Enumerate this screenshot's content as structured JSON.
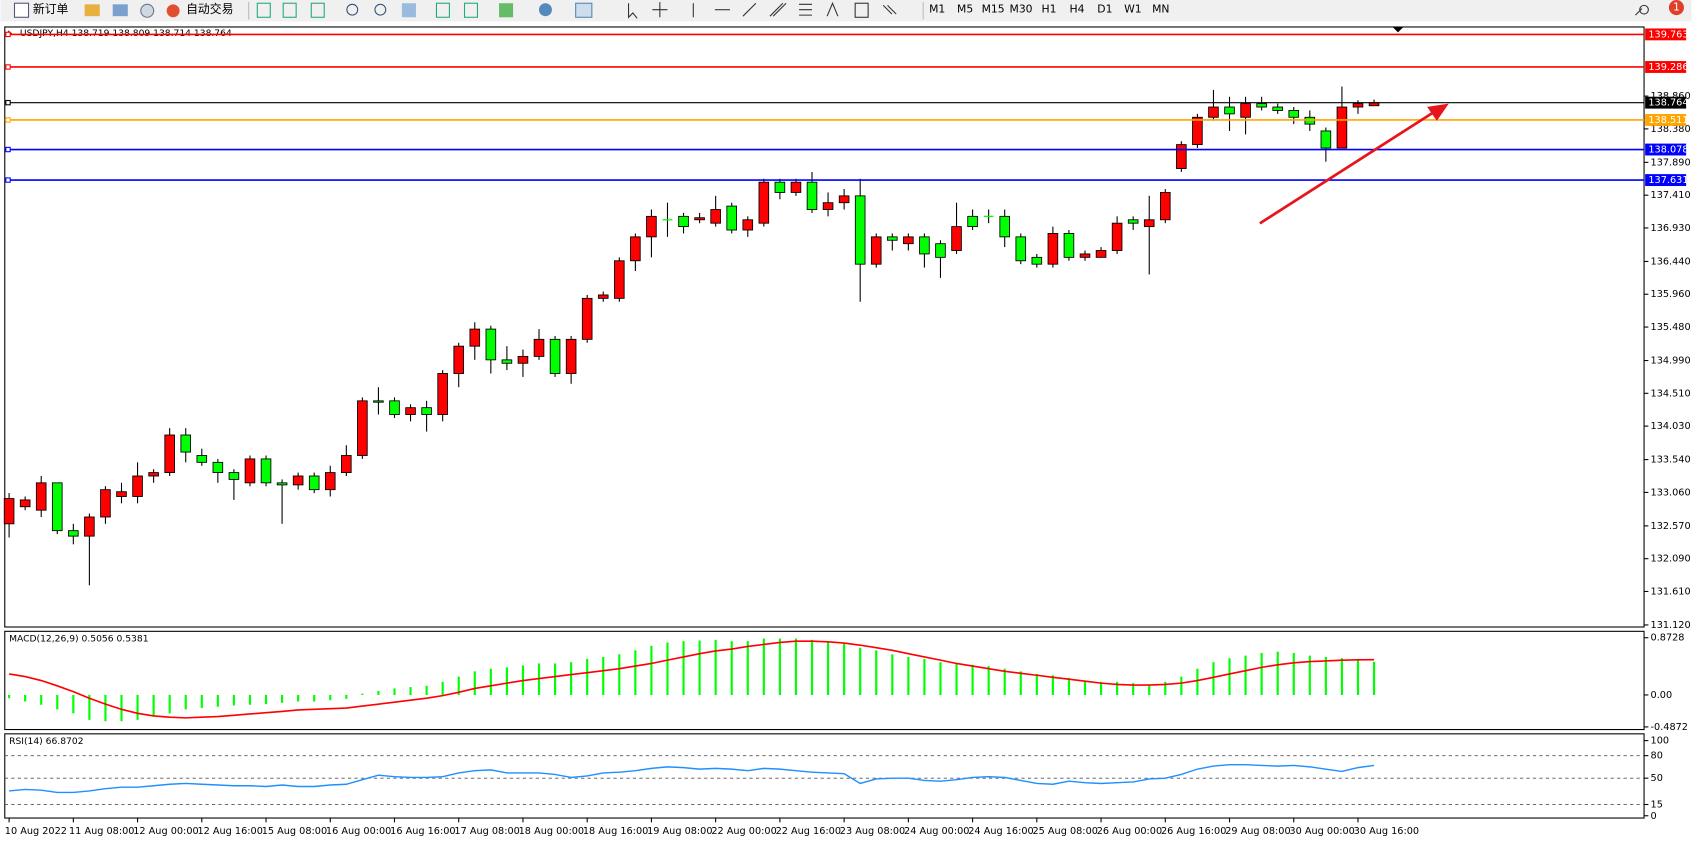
{
  "toolbar": {
    "new_order": "新订单",
    "auto_trading": "自动交易",
    "timeframes": [
      "M1",
      "M5",
      "M15",
      "M30",
      "H1",
      "H4",
      "D1",
      "W1",
      "MN"
    ],
    "alerts": "1"
  },
  "chart_data": [
    {
      "type": "candlestick",
      "title": "USDJPY,H4  138.719 138.809 138.714 138.764",
      "up_color": "#ff0000",
      "down_color": "#00ff00",
      "categories": [
        "10 Aug 2022",
        null,
        null,
        null,
        "11 Aug 08:00",
        null,
        null,
        null,
        "12 Aug 00:00",
        null,
        null,
        null,
        "12 Aug 16:00",
        null,
        null,
        null,
        "15 Aug 08:00",
        null,
        null,
        null,
        "16 Aug 00:00",
        null,
        null,
        null,
        "16 Aug 16:00",
        null,
        null,
        null,
        "17 Aug 08:00",
        null,
        null,
        null,
        "18 Aug 00:00",
        null,
        null,
        null,
        "18 Aug 16:00",
        null,
        null,
        null,
        "19 Aug 08:00",
        null,
        null,
        null,
        "22 Aug 00:00",
        null,
        null,
        null,
        "22 Aug 16:00",
        null,
        null,
        null,
        "23 Aug 08:00",
        null,
        null,
        null,
        "24 Aug 00:00",
        null,
        null,
        null,
        "24 Aug 16:00",
        null,
        null,
        null,
        "25 Aug 08:00",
        null,
        null,
        null,
        "26 Aug 00:00",
        null,
        null,
        null,
        "26 Aug 16:00",
        null,
        null,
        null,
        "29 Aug 08:00",
        null,
        null,
        null,
        "30 Aug 00:00",
        null,
        null,
        null,
        "30 Aug 16:00",
        null
      ],
      "open": [
        132.6,
        132.85,
        132.8,
        133.2,
        132.5,
        132.42,
        132.7,
        133.0,
        133.0,
        133.3,
        133.35,
        133.9,
        133.6,
        133.5,
        133.35,
        133.2,
        133.55,
        133.2,
        133.17,
        133.3,
        133.1,
        133.35,
        133.6,
        134.4,
        134.4,
        134.2,
        134.3,
        134.2,
        134.8,
        135.2,
        135.45,
        135.0,
        134.95,
        135.05,
        135.3,
        134.8,
        135.3,
        135.9,
        135.9,
        136.45,
        136.8,
        137.05,
        137.1,
        137.05,
        137.0,
        137.25,
        136.9,
        137.0,
        137.6,
        137.45,
        137.6,
        137.2,
        137.3,
        137.4,
        136.4,
        136.8,
        136.7,
        136.8,
        136.7,
        136.6,
        137.1,
        137.1,
        137.1,
        136.8,
        136.5,
        136.4,
        136.85,
        136.5,
        136.5,
        136.6,
        137.05,
        136.95,
        137.05,
        137.8,
        138.15,
        138.55,
        138.7,
        138.55,
        138.75,
        138.7,
        138.65,
        138.55,
        138.35,
        138.1,
        138.7,
        138.719
      ],
      "high": [
        133.05,
        133.0,
        133.3,
        133.2,
        132.6,
        132.75,
        133.15,
        133.2,
        133.5,
        133.4,
        134.0,
        134.0,
        133.7,
        133.55,
        133.4,
        133.6,
        133.6,
        133.25,
        133.35,
        133.35,
        133.45,
        133.75,
        134.45,
        134.6,
        134.45,
        134.35,
        134.4,
        134.85,
        135.25,
        135.55,
        135.5,
        135.2,
        135.15,
        135.45,
        135.35,
        135.35,
        135.95,
        136.0,
        136.5,
        136.85,
        137.2,
        137.3,
        137.15,
        137.15,
        137.4,
        137.3,
        137.1,
        137.65,
        137.65,
        137.65,
        137.75,
        137.45,
        137.5,
        137.65,
        136.85,
        136.85,
        136.85,
        136.85,
        136.75,
        137.3,
        137.2,
        137.2,
        137.2,
        136.85,
        136.55,
        136.95,
        136.9,
        136.6,
        136.65,
        137.1,
        137.1,
        137.4,
        137.5,
        138.2,
        138.6,
        138.95,
        138.85,
        138.85,
        138.85,
        138.75,
        138.7,
        138.65,
        138.4,
        139.0,
        138.8,
        138.809
      ],
      "low": [
        132.4,
        132.8,
        132.7,
        132.45,
        132.3,
        131.7,
        132.6,
        132.9,
        132.9,
        133.2,
        133.3,
        133.5,
        133.45,
        133.2,
        132.95,
        133.15,
        133.15,
        132.6,
        133.1,
        133.05,
        133.0,
        133.3,
        133.55,
        134.2,
        134.15,
        134.1,
        133.95,
        134.1,
        134.6,
        135.0,
        134.8,
        134.85,
        134.75,
        135.0,
        134.75,
        134.65,
        135.25,
        135.85,
        135.85,
        136.3,
        136.5,
        136.8,
        136.85,
        137.0,
        136.95,
        136.85,
        136.8,
        136.95,
        137.35,
        137.4,
        137.15,
        137.1,
        137.2,
        135.85,
        136.35,
        136.6,
        136.6,
        136.35,
        136.2,
        136.55,
        136.9,
        137.0,
        136.65,
        136.4,
        136.35,
        136.35,
        136.45,
        136.45,
        136.5,
        136.55,
        136.9,
        136.25,
        137.0,
        137.75,
        138.1,
        138.5,
        138.35,
        138.3,
        138.65,
        138.6,
        138.45,
        138.35,
        137.9,
        138.1,
        138.6,
        138.714
      ],
      "close": [
        132.97,
        132.95,
        133.2,
        132.5,
        132.42,
        132.7,
        133.1,
        133.07,
        133.3,
        133.35,
        133.9,
        133.65,
        133.5,
        133.35,
        133.25,
        133.55,
        133.2,
        133.17,
        133.3,
        133.1,
        133.35,
        133.6,
        134.4,
        134.38,
        134.2,
        134.3,
        134.2,
        134.8,
        135.2,
        135.45,
        135.0,
        134.95,
        135.05,
        135.3,
        134.8,
        135.3,
        135.9,
        135.95,
        136.45,
        136.8,
        137.1,
        137.05,
        136.95,
        137.08,
        137.2,
        136.9,
        137.05,
        137.6,
        137.45,
        137.6,
        137.2,
        137.3,
        137.4,
        136.4,
        136.8,
        136.75,
        136.8,
        136.55,
        136.5,
        136.95,
        136.95,
        137.1,
        136.8,
        136.45,
        136.4,
        136.85,
        136.5,
        136.55,
        136.6,
        137.0,
        137.0,
        137.05,
        137.45,
        138.15,
        138.55,
        138.7,
        138.6,
        138.75,
        138.7,
        138.65,
        138.55,
        138.45,
        138.1,
        138.7,
        138.75,
        138.764
      ],
      "ylim": [
        131.09,
        139.84
      ],
      "yticks": [
        {
          "value": 138.86,
          "label": "138.860"
        },
        {
          "value": 138.38,
          "label": "138.380"
        },
        {
          "value": 137.89,
          "label": "137.890"
        },
        {
          "value": 137.41,
          "label": "137.410"
        },
        {
          "value": 136.93,
          "label": "136.930"
        },
        {
          "value": 136.44,
          "label": "136.440"
        },
        {
          "value": 135.96,
          "label": "135.960"
        },
        {
          "value": 135.48,
          "label": "135.480"
        },
        {
          "value": 134.99,
          "label": "134.990"
        },
        {
          "value": 134.51,
          "label": "134.510"
        },
        {
          "value": 134.03,
          "label": "134.030"
        },
        {
          "value": 133.54,
          "label": "133.540"
        },
        {
          "value": 133.06,
          "label": "133.060"
        },
        {
          "value": 132.57,
          "label": "132.570"
        },
        {
          "value": 132.09,
          "label": "132.090"
        },
        {
          "value": 131.61,
          "label": "131.610"
        },
        {
          "value": 131.12,
          "label": "131.120"
        }
      ],
      "levels": [
        {
          "value": 139.763,
          "color": "#ff0000"
        },
        {
          "value": 139.286,
          "color": "#ff0000"
        },
        {
          "value": 138.764,
          "color": "#000000"
        },
        {
          "value": 138.511,
          "color": "#ffa500"
        },
        {
          "value": 138.078,
          "color": "#0000ff"
        },
        {
          "value": 137.631,
          "color": "#0000ff"
        }
      ]
    },
    {
      "type": "macd",
      "title": "MACD(12,26,9) 0.5056 0.5381",
      "ylim": [
        -0.527,
        0.97
      ],
      "yticks": [
        0.8728,
        {
          "value": 0,
          "label": "0.00"
        },
        -0.4872
      ],
      "series": [
        {
          "kind": "bar",
          "color": "#00ff00",
          "values": [
            -0.05,
            -0.1,
            -0.15,
            -0.22,
            -0.28,
            -0.38,
            -0.4,
            -0.4,
            -0.38,
            -0.33,
            -0.28,
            -0.22,
            -0.2,
            -0.18,
            -0.16,
            -0.15,
            -0.14,
            -0.12,
            -0.1,
            -0.1,
            -0.08,
            -0.06,
            0.02,
            0.06,
            0.1,
            0.12,
            0.14,
            0.2,
            0.28,
            0.36,
            0.4,
            0.42,
            0.45,
            0.48,
            0.48,
            0.5,
            0.55,
            0.58,
            0.62,
            0.68,
            0.75,
            0.8,
            0.82,
            0.83,
            0.84,
            0.82,
            0.82,
            0.86,
            0.86,
            0.86,
            0.84,
            0.82,
            0.8,
            0.72,
            0.68,
            0.62,
            0.58,
            0.55,
            0.5,
            0.48,
            0.46,
            0.44,
            0.4,
            0.36,
            0.32,
            0.3,
            0.26,
            0.22,
            0.2,
            0.2,
            0.18,
            0.16,
            0.2,
            0.28,
            0.4,
            0.5,
            0.56,
            0.6,
            0.64,
            0.66,
            0.64,
            0.6,
            0.58,
            0.56,
            0.55,
            0.5056
          ]
        },
        {
          "kind": "line",
          "color": "#ff0000",
          "values": [
            0.32,
            0.28,
            0.22,
            0.14,
            0.05,
            -0.05,
            -0.14,
            -0.22,
            -0.28,
            -0.32,
            -0.34,
            -0.35,
            -0.34,
            -0.33,
            -0.31,
            -0.29,
            -0.27,
            -0.25,
            -0.23,
            -0.22,
            -0.21,
            -0.2,
            -0.17,
            -0.14,
            -0.11,
            -0.08,
            -0.05,
            -0.01,
            0.04,
            0.1,
            0.14,
            0.18,
            0.22,
            0.25,
            0.28,
            0.31,
            0.34,
            0.37,
            0.4,
            0.44,
            0.48,
            0.53,
            0.58,
            0.63,
            0.67,
            0.7,
            0.74,
            0.77,
            0.8,
            0.82,
            0.82,
            0.81,
            0.79,
            0.76,
            0.72,
            0.68,
            0.63,
            0.58,
            0.53,
            0.48,
            0.44,
            0.4,
            0.36,
            0.33,
            0.3,
            0.27,
            0.24,
            0.21,
            0.18,
            0.16,
            0.15,
            0.15,
            0.16,
            0.18,
            0.22,
            0.27,
            0.32,
            0.37,
            0.42,
            0.46,
            0.49,
            0.51,
            0.52,
            0.53,
            0.535,
            0.5381
          ]
        }
      ]
    },
    {
      "type": "line",
      "title": "RSI(14) 66.8702",
      "ylim": [
        -3,
        109
      ],
      "yticks": [
        100,
        80,
        50,
        15,
        0
      ],
      "levels": [
        80,
        50,
        15
      ],
      "series": [
        {
          "kind": "line",
          "color": "#1e90ff",
          "values": [
            33,
            35,
            34,
            31,
            31,
            33,
            36,
            38,
            38,
            40,
            42,
            43,
            42,
            41,
            40,
            40,
            39,
            41,
            39,
            39,
            41,
            42,
            48,
            54,
            52,
            51,
            51,
            52,
            57,
            60,
            61,
            57,
            57,
            57,
            55,
            51,
            53,
            57,
            58,
            60,
            63,
            65,
            64,
            62,
            63,
            62,
            60,
            63,
            62,
            60,
            58,
            57,
            56,
            43,
            49,
            50,
            50,
            47,
            46,
            48,
            51,
            52,
            51,
            47,
            43,
            42,
            46,
            44,
            43,
            44,
            45,
            49,
            50,
            55,
            62,
            66,
            68,
            68,
            67,
            66,
            67,
            65,
            62,
            59,
            64,
            66.8702
          ]
        }
      ]
    }
  ]
}
